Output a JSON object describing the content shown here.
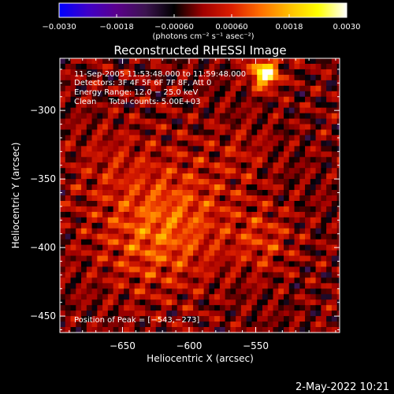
{
  "colors": {
    "background": "#000000",
    "foreground": "#ffffff",
    "colormap": [
      "#0000ff",
      "#3f00c8",
      "#5a008c",
      "#3c1450",
      "#000000",
      "#a00000",
      "#dc1e00",
      "#ff6e00",
      "#ffbe00",
      "#ffff00",
      "#ffffff"
    ]
  },
  "colorbar": {
    "vmin": -0.003,
    "vmax": 0.003,
    "tick_values": [
      -0.003,
      -0.0018,
      -0.0006,
      0.0006,
      0.0018,
      0.003
    ],
    "tick_labels": [
      "−0.0030",
      "−0.0018",
      "−0.00060",
      "0.00060",
      "0.0018",
      "0.0030"
    ],
    "units_label": "(photons cm⁻² s⁻¹ asec⁻²)"
  },
  "chart_data": {
    "type": "heatmap",
    "title": "Reconstructed RHESSI Image",
    "xlabel": "Heliocentric X (arcsec)",
    "ylabel": "Heliocentric Y (arcsec)",
    "xlim": [
      -697,
      -487
    ],
    "ylim": [
      -462,
      -262
    ],
    "x_ticks": [
      -650,
      -600,
      -550
    ],
    "x_tick_labels": [
      "−650",
      "−600",
      "−550"
    ],
    "y_ticks": [
      -300,
      -350,
      -400,
      -450
    ],
    "y_tick_labels": [
      "−300",
      "−350",
      "−400",
      "−450"
    ],
    "peak": {
      "x": -543,
      "y": -273
    },
    "intensity_range": [
      -0.003,
      0.003
    ],
    "annotations": [
      "11-Sep-2005 11:53:48.000 to 11:59:48.000",
      "Detectors: 3F 4F 5F 6F 7F 8F, Att 0",
      "Energy Range: 12.0 − 25.0 keV",
      "Clean     Total counts: 5.00E+03",
      "Position of Peak = [−543,−273]"
    ]
  },
  "footer": {
    "timestamp": "2-May-2022 10:21"
  }
}
